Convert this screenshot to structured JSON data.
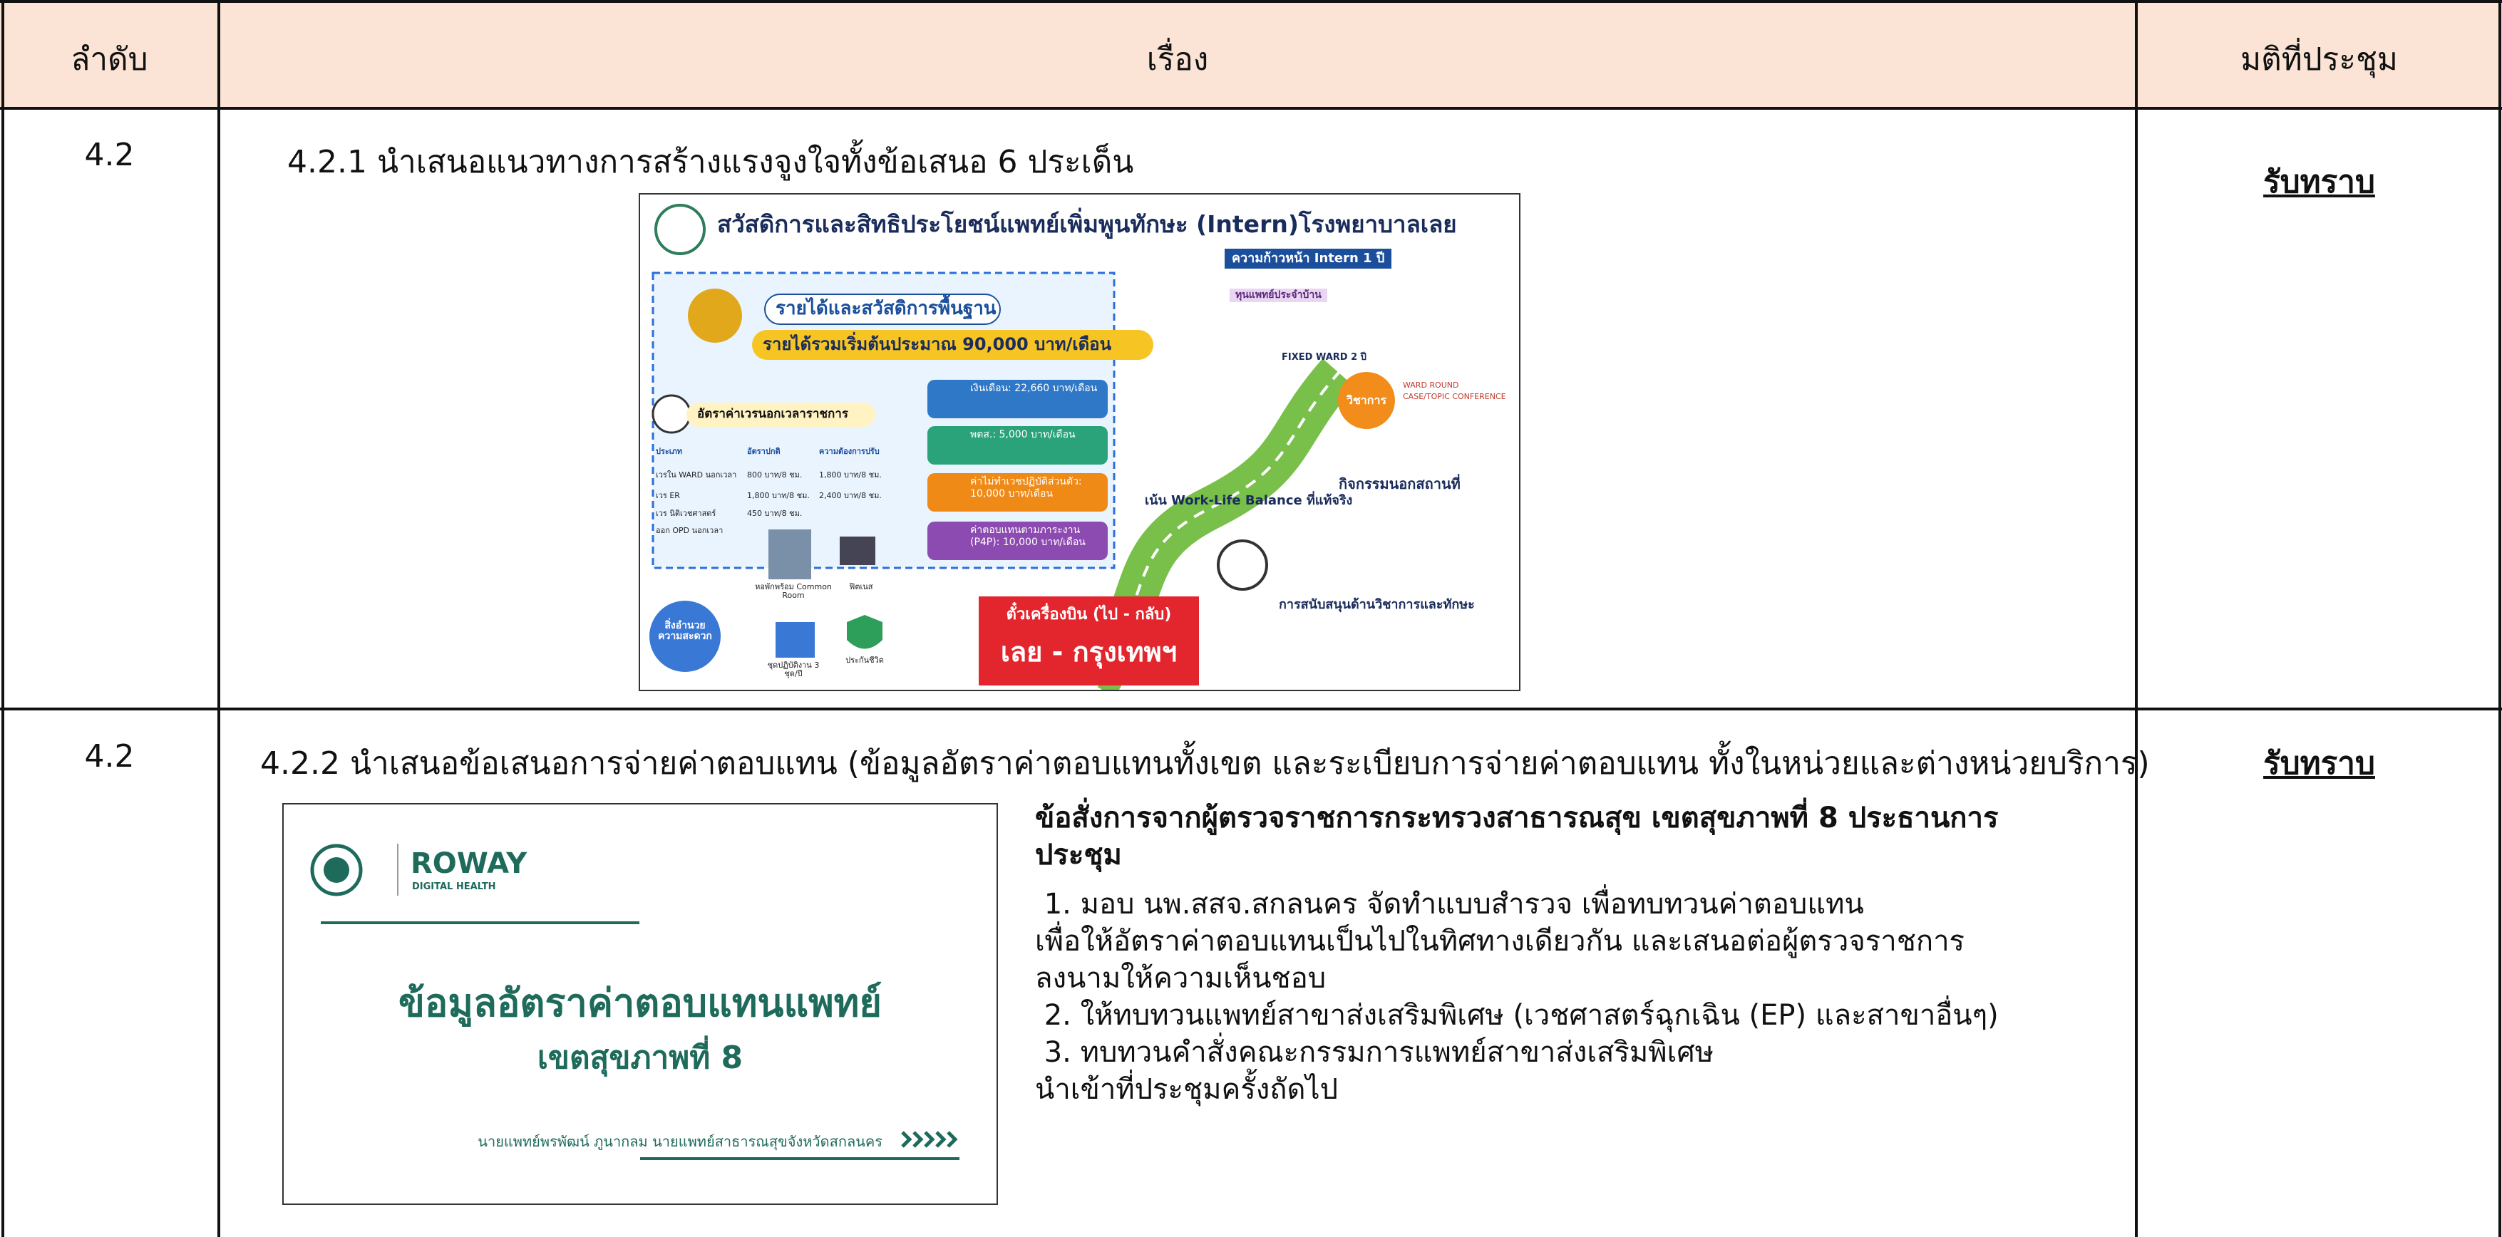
{
  "table": {
    "headers": [
      "ลำดับ",
      "เรื่อง",
      "มติที่ประชุม"
    ],
    "rows": [
      {
        "number": "4.2",
        "title": "4.2.1 นำเสนอแนวทางการสร้างแรงจูงใจทั้งข้อเสนอ 6 ประเด็น",
        "resolution": "รับทราบ",
        "infographic": {
          "title": "สวัสดิการและสิทธิประโยชน์แพทย์เพิ่มพูนทักษะ (Intern)โรงพยาบาลเลย",
          "income_heading": "รายได้และสวัสดิการพื้นฐาน",
          "income_total": "รายได้รวมเริ่มต้นประมาณ 90,000 บาท/เดือน",
          "overtime_heading": "อัตราค่าเวรนอกเวลาราชการ",
          "overtime_headers": [
            "ประเภท",
            "อัตราปกติ",
            "ความต้องการปรับ"
          ],
          "overtime_rows": [
            [
              "เวรใน WARD นอกเวลา",
              "800 บาท/8 ชม.",
              "1,800 บาท/8 ชม."
            ],
            [
              "เวร ER",
              "1,800 บาท/8 ชม.",
              "2,400 บาท/8 ชม."
            ],
            [
              "เวร นิติเวชศาสตร์",
              "450 บาท/8 ชม.",
              ""
            ],
            [
              "ออก OPD นอกเวลา",
              "",
              ""
            ]
          ],
          "boxes": [
            "เงินเดือน: 22,660 บาท/เดือน",
            "พตส.: 5,000 บาท/เดือน",
            "ค่าไม่ทำเวชปฏิบัติส่วนตัว: 10,000 บาท/เดือน",
            "ค่าตอบแทนตามภาระงาน (P4P): 10,000 บาท/เดือน"
          ],
          "facilities_heading": "สิ่งอำนวยความสะดวก",
          "facilities": [
            "หอพักพร้อม Common Room",
            "ฟิตเนส",
            "ชุดปฏิบัติงาน 3 ชุด/ปี",
            "ประกันชีวิต"
          ],
          "ticket": [
            "ตั๋วเครื่องบิน (ไป - กลับ)",
            "เลย - กรุงเทพฯ"
          ],
          "progress_heading": "ความก้าวหน้า Intern 1 ปี",
          "residency": "ทุนแพทย์ประจำบ้าน",
          "fixed_ward": "FIXED WARD 2 ปี",
          "academic": "วิชาการ",
          "academic_items": [
            "WARD ROUND",
            "CASE/TOPIC CONFERENCE"
          ],
          "work_life": "เน้น Work-Life Balance ที่แท้จริง",
          "outing": "กิจกรรมนอกสถานที่",
          "support": "การสนับสนุนด้านวิชาการและทักษะ"
        },
        "notes": null
      },
      {
        "number": "4.2",
        "title": "4.2.2 นำเสนอข้อเสนอการจ่ายค่าตอบแทน (ข้อมูลอัตราค่าตอบแทนทั้งเขต และระเบียบการจ่ายค่าตอบแทน ทั้งในหน่วยและต่างหน่วยบริการ)",
        "resolution": "รับทราบ",
        "slide": {
          "brand": "ROWAY",
          "brand_sub": "DIGITAL HEALTH",
          "title": "ข้อมูลอัตราค่าตอบแทนแพทย์",
          "subtitle": "เขตสุขภาพที่ 8",
          "presenter": "นายแพทย์พรพัฒน์ ภูนากลม นายแพทย์สาธารณสุขจังหวัดสกลนคร"
        },
        "notes": {
          "heading": "ข้อสั่งการจากผู้ตรวจราชการกระทรวงสาธารณสุข เขตสุขภาพที่ 8 ประธานการประชุม",
          "lines": [
            " 1. มอบ นพ.สสจ.สกลนคร จัดทำแบบสำรวจ เพื่อทบทวนค่าตอบแทน",
            "เพื่อให้อัตราค่าตอบแทนเป็นไปในทิศทางเดียวกัน และเสนอต่อผู้ตรวจราชการ",
            "ลงนามให้ความเห็นชอบ",
            " 2. ให้ทบทวนแพทย์สาขาส่งเสริมพิเศษ (เวชศาสตร์ฉุกเฉิน (EP) และสาขาอื่นๆ)",
            " 3. ทบทวนคำสั่งคณะกรรมการแพทย์สาขาส่งเสริมพิเศษ",
            "นำเข้าที่ประชุมครั้งถัดไป"
          ]
        }
      }
    ]
  }
}
